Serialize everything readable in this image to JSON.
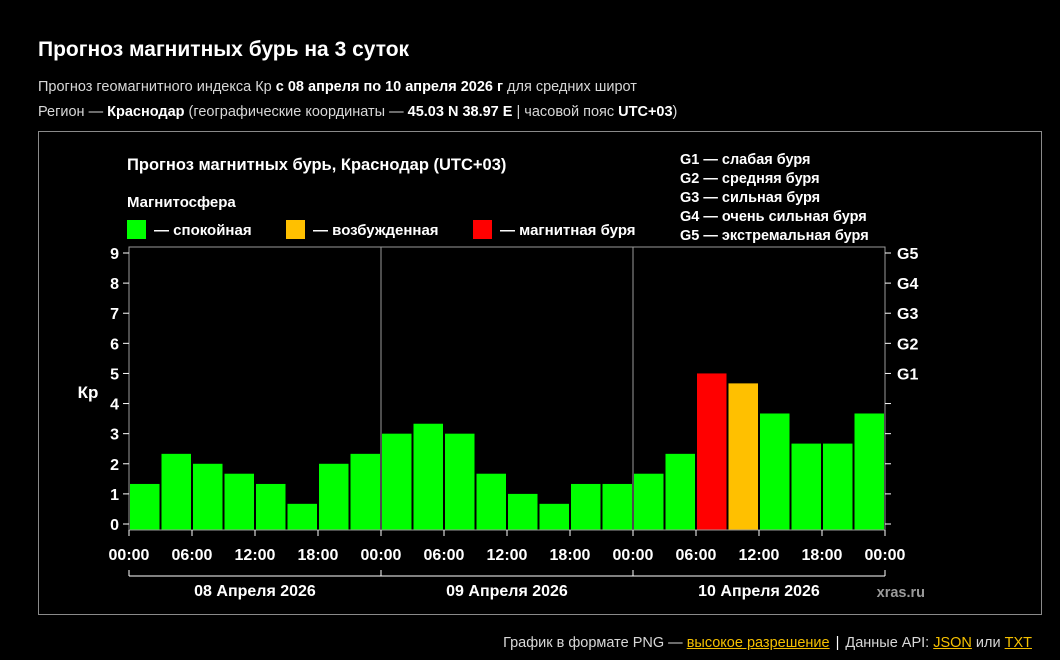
{
  "header": {
    "title": "Прогноз магнитных бурь на 3 суток",
    "line1": {
      "prefix": "Прогноз геомагнитного индекса Кр ",
      "period": "с 08 апреля по 10 апреля 2026 г",
      "suffix": " для средних широт"
    },
    "line2": {
      "prefix": "Регион — ",
      "region": "Краснодар",
      "coords_prefix": " (географические координаты — ",
      "coords": "45.03 N 38.97 E",
      "tz_prefix": " | часовой пояс ",
      "tz": "UTC+03",
      "suffix": ")"
    }
  },
  "chart_data": {
    "type": "bar",
    "title": "Прогноз магнитных бурь, Краснодар (UTC+03)",
    "legend_title": "Магнитосфера",
    "legend_placement": "top-left",
    "legend": [
      {
        "label": "— спокойная",
        "color": "#00ff00"
      },
      {
        "label": "— возбужденная",
        "color": "#ffc000"
      },
      {
        "label": "— магнитная буря",
        "color": "#ff0000"
      }
    ],
    "g_legend": [
      "G1 — слабая буря",
      "G2 — средняя буря",
      "G3 — сильная буря",
      "G4 — очень сильная буря",
      "G5 — экстремальная буря"
    ],
    "ylabel": "Кр",
    "ylim": [
      0,
      9
    ],
    "yticks": [
      "0",
      "1",
      "2",
      "3",
      "4",
      "5",
      "6",
      "7",
      "8",
      "9"
    ],
    "right_ticks": [
      {
        "kp": 5,
        "label": "G1"
      },
      {
        "kp": 6,
        "label": "G2"
      },
      {
        "kp": 7,
        "label": "G3"
      },
      {
        "kp": 8,
        "label": "G4"
      },
      {
        "kp": 9,
        "label": "G5"
      }
    ],
    "xtick_labels": [
      "00:00",
      "06:00",
      "12:00",
      "18:00",
      "00:00",
      "06:00",
      "12:00",
      "18:00",
      "00:00",
      "06:00",
      "12:00",
      "18:00",
      "00:00"
    ],
    "days": [
      "08 Апреля 2026",
      "09 Апреля 2026",
      "10 Апреля 2026"
    ],
    "interval_hours": 3,
    "grid": false,
    "values": [
      1.33,
      2.33,
      2.0,
      1.67,
      1.33,
      0.67,
      2.0,
      2.33,
      3.0,
      3.33,
      3.0,
      1.67,
      1.0,
      0.67,
      1.33,
      1.33,
      1.67,
      2.33,
      5.0,
      4.67,
      3.67,
      2.67,
      2.67,
      3.67
    ],
    "status": [
      "quiet",
      "quiet",
      "quiet",
      "quiet",
      "quiet",
      "quiet",
      "quiet",
      "quiet",
      "quiet",
      "quiet",
      "quiet",
      "quiet",
      "quiet",
      "quiet",
      "quiet",
      "quiet",
      "quiet",
      "quiet",
      "storm",
      "excited",
      "quiet",
      "quiet",
      "quiet",
      "quiet"
    ],
    "colors": {
      "quiet": "#00ff00",
      "excited": "#ffc000",
      "storm": "#ff0000"
    },
    "watermark": "xras.ru"
  },
  "footer": {
    "text": "График в формате PNG — ",
    "link_hires": "высокое разрешение",
    "separator": "|",
    "api_text": "Данные API: ",
    "link_json": "JSON",
    "or": " или ",
    "link_txt": "TXT"
  }
}
